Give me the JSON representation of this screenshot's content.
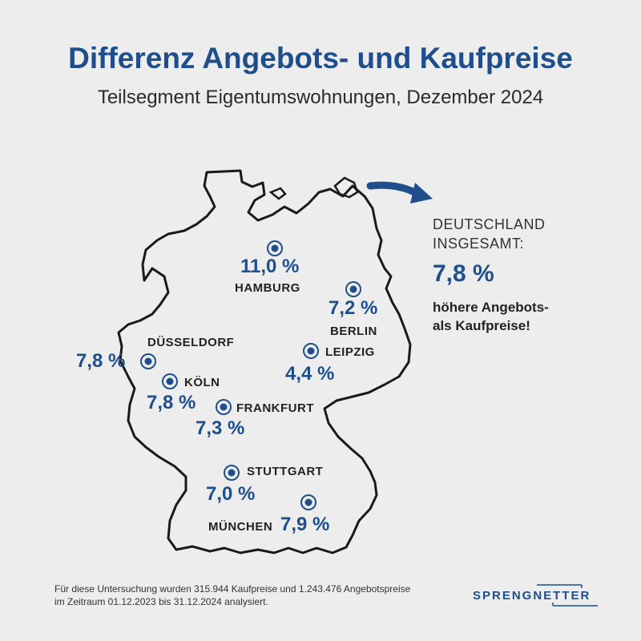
{
  "header": {
    "title": "Differenz Angebots- und Kaufpreise",
    "subtitle": "Teilsegment Eigentumswohnungen, Dezember 2024"
  },
  "cities": [
    {
      "name": "HAMBURG",
      "value": "11,0 %"
    },
    {
      "name": "BERLIN",
      "value": "7,2 %"
    },
    {
      "name": "DÜSSELDORF",
      "value": "7,8 %"
    },
    {
      "name": "LEIPZIG",
      "value": "4,4 %"
    },
    {
      "name": "KÖLN",
      "value": "7,8 %"
    },
    {
      "name": "FRANKFURT",
      "value": "7,3 %"
    },
    {
      "name": "STUTTGART",
      "value": "7,0 %"
    },
    {
      "name": "MÜNCHEN",
      "value": "7,9 %"
    }
  ],
  "summary": {
    "label_line1": "DEUTSCHLAND",
    "label_line2": "INSGESAMT:",
    "value": "7,8 %",
    "text_line1": "höhere Angebots-",
    "text_line2": "als Kaufpreise!"
  },
  "footer": {
    "note_line1": "Für diese Untersuchung wurden 315.944 Kaufpreise und 1.243.476 Angebotspreise",
    "note_line2": "im Zeitraum 01.12.2023 bis 31.12.2024 analysiert.",
    "brand": "SPRENGNETTER"
  },
  "colors": {
    "accent": "#1f4e8c",
    "background": "#ededed",
    "outline": "#1a1a1a"
  }
}
